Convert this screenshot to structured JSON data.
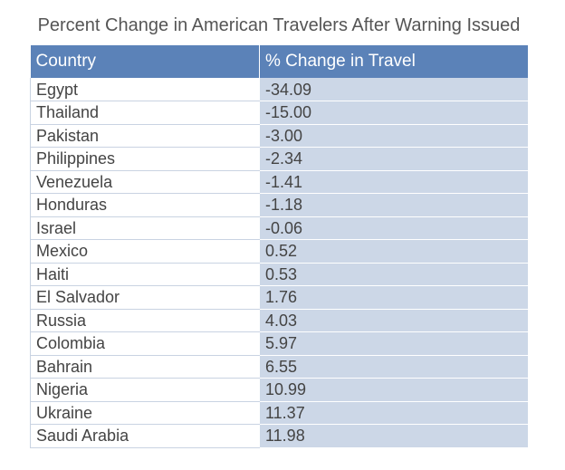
{
  "chart_data": {
    "type": "table",
    "title": "Percent Change in American Travelers After Warning Issued",
    "columns": [
      "Country",
      "% Change in Travel"
    ],
    "rows": [
      {
        "country": "Egypt",
        "change": "-34.09"
      },
      {
        "country": "Thailand",
        "change": "-15.00"
      },
      {
        "country": "Pakistan",
        "change": "-3.00"
      },
      {
        "country": "Philippines",
        "change": "-2.34"
      },
      {
        "country": "Venezuela",
        "change": "-1.41"
      },
      {
        "country": "Honduras",
        "change": "-1.18"
      },
      {
        "country": "Israel",
        "change": "-0.06"
      },
      {
        "country": "Mexico",
        "change": "0.52"
      },
      {
        "country": "Haiti",
        "change": "0.53"
      },
      {
        "country": "El Salvador",
        "change": "1.76"
      },
      {
        "country": "Russia",
        "change": "4.03"
      },
      {
        "country": "Colombia",
        "change": "5.97"
      },
      {
        "country": "Bahrain",
        "change": "6.55"
      },
      {
        "country": "Nigeria",
        "change": "10.99"
      },
      {
        "country": "Ukraine",
        "change": "11.37"
      },
      {
        "country": "Saudi Arabia",
        "change": "11.98"
      }
    ],
    "colors": {
      "header_bg": "#5b82b8",
      "value_column_bg": "#ccd7e7",
      "title_text": "#555555"
    }
  }
}
